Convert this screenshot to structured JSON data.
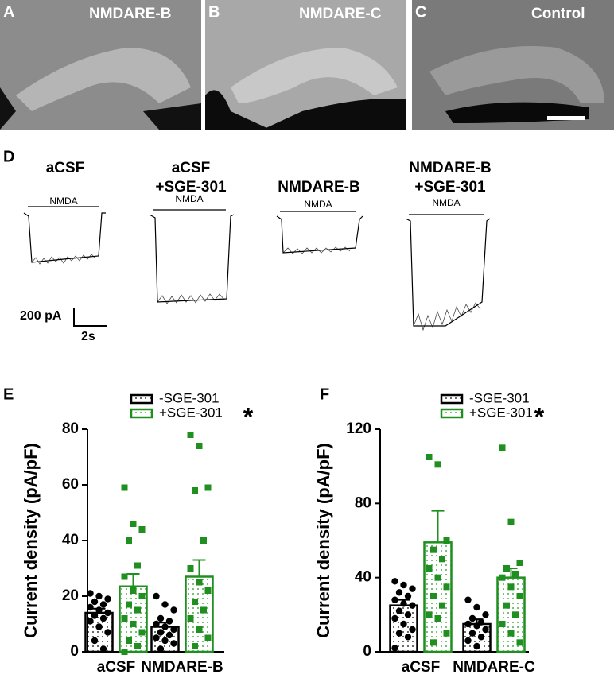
{
  "panels": {
    "a": {
      "letter": "A",
      "label": "NMDARE-B"
    },
    "b": {
      "letter": "B",
      "label": "NMDARE-C"
    },
    "c": {
      "letter": "C",
      "label": "Control"
    },
    "d": {
      "letter": "D",
      "traces": [
        {
          "title": [
            "aCSF"
          ],
          "stim": "NMDA"
        },
        {
          "title": [
            "aCSF",
            "+SGE-301"
          ],
          "stim": "NMDA"
        },
        {
          "title": [
            "NMDARE-B"
          ],
          "stim": "NMDA"
        },
        {
          "title": [
            "NMDARE-B",
            "+SGE-301"
          ],
          "stim": "NMDA"
        }
      ],
      "scale_y": "200 pA",
      "scale_x": "2s"
    }
  },
  "chart_data": [
    {
      "type": "bar",
      "panel": "E",
      "ylabel": "Current density (pA/pF)",
      "annotation": "*",
      "categories": [
        "aCSF",
        "NMDARE-B"
      ],
      "ylim": [
        0,
        80
      ],
      "yticks": [
        0,
        20,
        40,
        60,
        80
      ],
      "series": [
        {
          "name": "-SGE-301",
          "color": "#000000",
          "values": [
            14,
            9
          ],
          "errors": [
            1.5,
            1.5
          ],
          "points": [
            [
              21,
              20,
              19,
              18,
              17,
              16,
              15,
              14,
              13,
              12,
              11,
              9,
              7,
              4,
              1
            ],
            [
              20,
              17,
              15,
              12,
              11,
              10,
              9,
              8,
              7,
              6,
              5,
              4,
              3,
              1
            ]
          ]
        },
        {
          "name": "+SGE-301",
          "color": "#1f8f1f",
          "values": [
            23.5,
            27
          ],
          "errors": [
            4.5,
            6
          ],
          "points": [
            [
              59,
              46,
              44,
              40,
              31,
              27,
              22,
              20,
              17,
              15,
              12,
              10,
              7,
              4,
              2,
              0
            ],
            [
              78,
              74,
              59,
              58,
              40,
              30,
              25,
              22,
              18,
              15,
              12,
              8,
              5,
              2
            ]
          ]
        }
      ]
    },
    {
      "type": "bar",
      "panel": "F",
      "ylabel": "Current density (pA/pF)",
      "annotation": "*",
      "categories": [
        "aCSF",
        "NMDARE-C"
      ],
      "ylim": [
        0,
        120
      ],
      "yticks": [
        0,
        40,
        80,
        120
      ],
      "series": [
        {
          "name": "-SGE-301",
          "color": "#000000",
          "values": [
            25,
            15
          ],
          "errors": [
            3,
            2.5
          ],
          "points": [
            [
              38,
              36,
              34,
              32,
              30,
              28,
              26,
              25,
              22,
              20,
              18,
              15,
              12,
              10,
              8,
              2
            ],
            [
              28,
              24,
              20,
              18,
              16,
              15,
              14,
              12,
              10,
              8,
              6,
              3
            ]
          ]
        },
        {
          "name": "+SGE-301",
          "color": "#1f8f1f",
          "values": [
            59,
            40
          ],
          "errors": [
            17,
            5
          ],
          "points": [
            [
              105,
              101,
              60,
              55,
              50,
              45,
              40,
              35,
              30,
              25,
              20,
              18,
              10,
              5
            ],
            [
              110,
              70,
              48,
              45,
              42,
              40,
              35,
              30,
              25,
              20,
              15,
              10,
              5
            ]
          ]
        }
      ]
    }
  ]
}
